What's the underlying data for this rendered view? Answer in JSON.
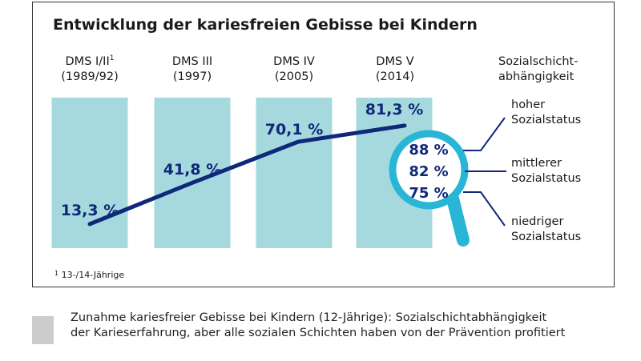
{
  "chart_data": {
    "type": "line",
    "title": "Entwicklung der kariesfreien Gebisse bei Kindern",
    "categories": [
      {
        "name": "DMS I/II",
        "sup": "1",
        "year": "(1989/92)"
      },
      {
        "name": "DMS III",
        "sup": "",
        "year": "(1997)"
      },
      {
        "name": "DMS IV",
        "sup": "",
        "year": "(2005)"
      },
      {
        "name": "DMS V",
        "sup": "",
        "year": "(2014)"
      }
    ],
    "values": [
      13.3,
      41.8,
      70.1,
      81.3
    ],
    "value_labels": [
      "13,3 %",
      "41,8 %",
      "70,1 %",
      "81,3 %"
    ],
    "ylim": [
      0,
      100
    ],
    "line_color": "#10287a",
    "bar_color": "#a6d9de",
    "magnifier_color": "#29b6d6",
    "label_color": "#10287a",
    "social_status": {
      "heading_line1": "Sozialschicht-",
      "heading_line2": "abhängigkeit",
      "items": [
        {
          "value": 88,
          "label": "88 %",
          "status_line1": "hoher",
          "status_line2": "Sozialstatus"
        },
        {
          "value": 82,
          "label": "82 %",
          "status_line1": "mittlerer",
          "status_line2": "Sozialstatus"
        },
        {
          "value": 75,
          "label": "75 %",
          "status_line1": "niedriger",
          "status_line2": "Sozialstatus"
        }
      ]
    }
  },
  "footnote": {
    "marker": "1",
    "text": "13-/14-Jährige"
  },
  "caption": {
    "line1": "Zunahme kariesfreier Gebisse bei Kindern (12-Jährige): Sozialschichtabhängigkeit",
    "line2": "der Karieserfahrung, aber alle sozialen Schichten haben von der Prävention profitiert"
  }
}
